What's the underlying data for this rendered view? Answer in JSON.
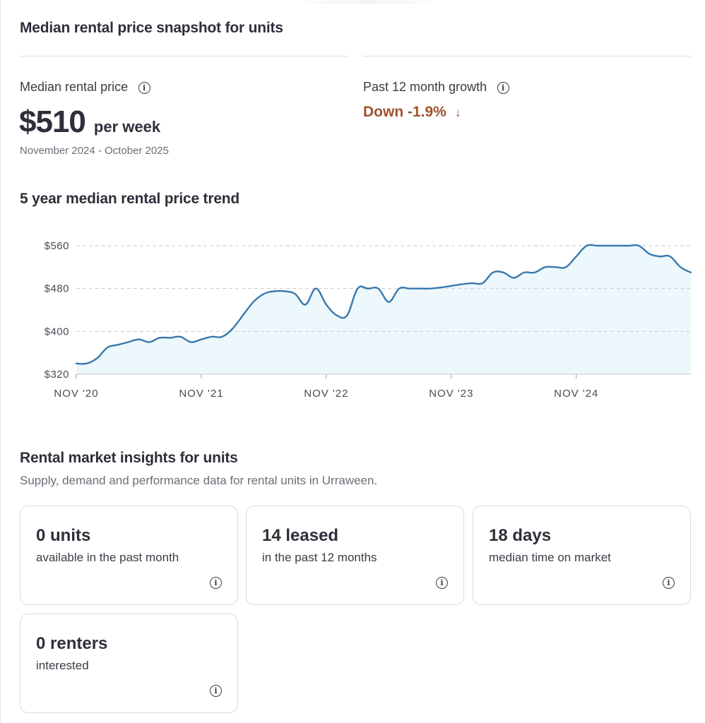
{
  "snapshot": {
    "title": "Median rental price snapshot for units",
    "median_label": "Median rental price",
    "price": "$510",
    "price_unit": "per week",
    "period": "November 2024 - October 2025",
    "growth_label": "Past 12 month growth",
    "growth_value": "Down -1.9%",
    "growth_arrow": "↓",
    "info_glyph": "i",
    "colors": {
      "growth": "#a0522d",
      "line": "#3a78ae",
      "area": "#ecf8fb"
    }
  },
  "trend": {
    "title": "5 year median rental price trend"
  },
  "chart_data": {
    "type": "area",
    "title": "5 year median rental price trend",
    "y_ticks": [
      "$560",
      "$480",
      "$400",
      "$320"
    ],
    "y_tick_values": [
      560,
      480,
      400,
      320
    ],
    "x_ticks": [
      "NOV '20",
      "NOV '21",
      "NOV '22",
      "NOV '23",
      "NOV '24"
    ],
    "x_tick_months": [
      0,
      12,
      24,
      36,
      48
    ],
    "ylim": [
      320,
      560
    ],
    "xlim_months": [
      0,
      59
    ],
    "grid": true,
    "series": [
      {
        "months": [
          0,
          1,
          2,
          3,
          4,
          5,
          6,
          7,
          8,
          9,
          10,
          11,
          12,
          13,
          14,
          15,
          16,
          17,
          18,
          19,
          20,
          21,
          22,
          23,
          24,
          25,
          26,
          27,
          28,
          29,
          30,
          31,
          32,
          33,
          34,
          35,
          36,
          37,
          38,
          39,
          40,
          41,
          42,
          43,
          44,
          45,
          46,
          47,
          48,
          49,
          50,
          51,
          52,
          53,
          54,
          55,
          56,
          57,
          58,
          59
        ],
        "values": [
          340,
          340,
          350,
          370,
          375,
          380,
          385,
          380,
          388,
          388,
          390,
          380,
          385,
          390,
          390,
          405,
          430,
          455,
          470,
          475,
          475,
          470,
          450,
          480,
          450,
          430,
          430,
          480,
          480,
          480,
          455,
          480,
          480,
          480,
          480,
          482,
          485,
          488,
          490,
          490,
          510,
          510,
          500,
          510,
          510,
          520,
          520,
          520,
          540,
          560,
          560,
          560,
          560,
          560,
          560,
          545,
          540,
          540,
          520,
          510
        ]
      }
    ]
  },
  "insights": {
    "title": "Rental market insights for units",
    "description": "Supply, demand and performance data for rental units in Urraween.",
    "cards": [
      {
        "big": "0 units",
        "small": "available in the past month"
      },
      {
        "big": "14 leased",
        "small": "in the past 12 months"
      },
      {
        "big": "18 days",
        "small": "median time on market"
      },
      {
        "big": "0 renters",
        "small": "interested"
      }
    ]
  }
}
